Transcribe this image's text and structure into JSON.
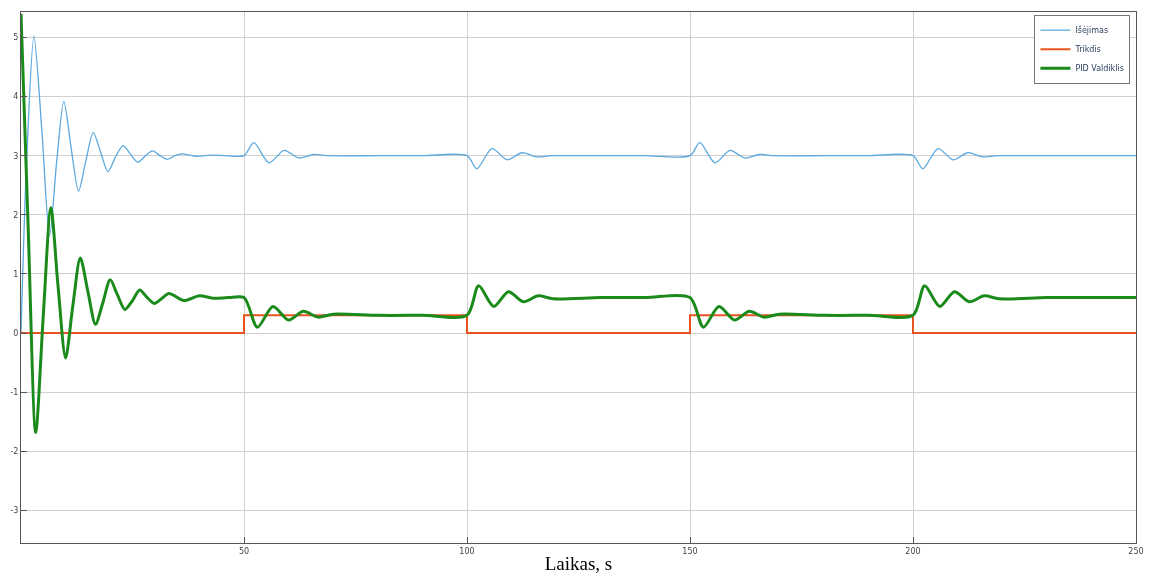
{
  "chart_data": {
    "type": "line",
    "xlabel": "Laikas, s",
    "xlim": [
      0,
      250
    ],
    "xticks": [
      50,
      100,
      150,
      200,
      250
    ],
    "ylim": [
      -3.55,
      5.43
    ],
    "yticks": [
      -3,
      -2,
      -1,
      0,
      1,
      2,
      3,
      4,
      5
    ],
    "grid": true,
    "legend": "top right",
    "marker": "none",
    "line_style": "solid",
    "series": [
      {
        "name": "Išėjimas",
        "color": "#5aa9e0",
        "x": [
          0,
          1.2,
          2.9,
          4.7,
          6.4,
          8,
          9.6,
          11.3,
          12.9,
          14.5,
          16.2,
          17.9,
          19.5,
          21.2,
          22.9,
          24.5,
          26.2,
          27.9,
          29.5,
          31.2,
          32.8,
          34.5,
          36.1,
          39.4,
          42.7,
          46,
          50,
          52.2,
          55.6,
          59,
          62.3,
          65.6,
          69,
          80,
          90,
          100,
          102.2,
          105.6,
          109,
          112.3,
          115.6,
          119,
          130,
          140,
          150,
          152.2,
          155.6,
          159,
          162.3,
          165.6,
          169,
          180,
          190,
          200,
          202.2,
          205.6,
          209,
          212.3,
          215.6,
          219,
          230,
          240,
          250
        ],
        "values": [
          0,
          2.8,
          5.02,
          3.4,
          1.64,
          2.9,
          3.92,
          3.1,
          2.4,
          2.9,
          3.39,
          3.05,
          2.73,
          2.98,
          3.17,
          3.03,
          2.89,
          3.0,
          3.08,
          3.0,
          2.94,
          3.0,
          3.03,
          2.99,
          3.01,
          3.0,
          3.0,
          3.22,
          2.88,
          3.09,
          2.96,
          3.02,
          3.0,
          3.0,
          3.0,
          3.0,
          2.78,
          3.12,
          2.93,
          3.05,
          2.98,
          3.0,
          3.0,
          3.0,
          3.0,
          3.22,
          2.88,
          3.09,
          2.96,
          3.02,
          3.0,
          3.0,
          3.0,
          3.0,
          2.78,
          3.12,
          2.93,
          3.05,
          2.98,
          3.0,
          3.0,
          3.0,
          3.0
        ]
      },
      {
        "name": "Trikdis",
        "type": "step",
        "color": "#e8541f",
        "x": [
          0,
          50,
          100,
          150,
          200,
          250
        ],
        "values": [
          0,
          0.3,
          0,
          0.3,
          0,
          0
        ]
      },
      {
        "name": "PID Valdiklis",
        "color": "#1a8a1a",
        "x": [
          0,
          1.6,
          3.3,
          5,
          6.7,
          8.3,
          10,
          11.6,
          13.3,
          15,
          16.7,
          18.3,
          20,
          21.6,
          23.3,
          25,
          26.6,
          28.3,
          29.9,
          31.5,
          33.2,
          36.5,
          40,
          43,
          46.5,
          50,
          53,
          56.5,
          60,
          63.3,
          66.6,
          70,
          80,
          90,
          100,
          102.6,
          106,
          109.3,
          112.6,
          116,
          119.3,
          130,
          140,
          150,
          153,
          156.5,
          160,
          163.3,
          166.6,
          170,
          180,
          190,
          200,
          202.6,
          206,
          209.3,
          212.6,
          216,
          219.3,
          230,
          240,
          250
        ],
        "values": [
          5.4,
          1.8,
          -1.68,
          0.3,
          2.12,
          0.8,
          -0.42,
          0.45,
          1.27,
          0.7,
          0.15,
          0.5,
          0.9,
          0.65,
          0.4,
          0.55,
          0.73,
          0.6,
          0.5,
          0.58,
          0.67,
          0.55,
          0.63,
          0.59,
          0.6,
          0.6,
          0.1,
          0.45,
          0.22,
          0.37,
          0.27,
          0.32,
          0.3,
          0.3,
          0.3,
          0.8,
          0.45,
          0.7,
          0.53,
          0.63,
          0.58,
          0.6,
          0.6,
          0.6,
          0.1,
          0.45,
          0.22,
          0.37,
          0.27,
          0.32,
          0.3,
          0.3,
          0.3,
          0.8,
          0.45,
          0.7,
          0.53,
          0.63,
          0.58,
          0.6,
          0.6,
          0.6
        ]
      }
    ]
  }
}
